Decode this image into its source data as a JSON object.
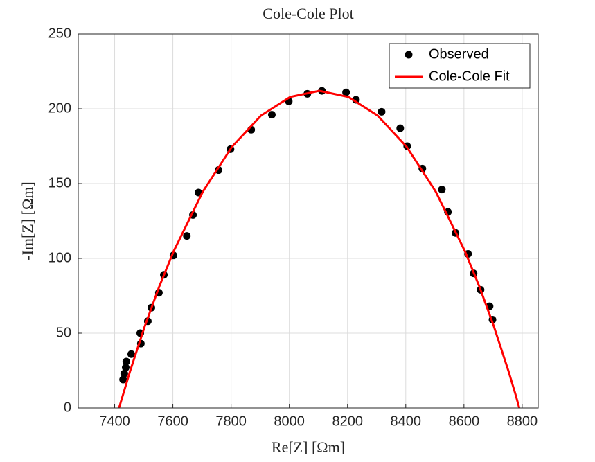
{
  "chart_data": {
    "type": "scatter",
    "title": "Cole-Cole Plot",
    "xlabel": "Re[Z] [Ωm]",
    "ylabel": "-Im[Z] [Ωm]",
    "xlim": [
      7275,
      8855
    ],
    "ylim": [
      0,
      250
    ],
    "xticks": [
      7400,
      7600,
      7800,
      8000,
      8200,
      8400,
      8600,
      8800
    ],
    "yticks": [
      0,
      50,
      100,
      150,
      200,
      250
    ],
    "grid": true,
    "legend": "northeast",
    "series": [
      {
        "name": "Observed",
        "type": "scatter",
        "color": "#000000",
        "x": [
          7429,
          7433,
          7438,
          7440,
          7457,
          7490,
          7488,
          7514,
          7526,
          7552,
          7569,
          7602,
          7648,
          7669,
          7688,
          7757,
          7798,
          7869,
          7940,
          7998,
          8062,
          8112,
          8195,
          8229,
          8317,
          8381,
          8405,
          8457,
          8524,
          8545,
          8571,
          8614,
          8633,
          8657,
          8688,
          8698
        ],
        "values": [
          19,
          23,
          27,
          31,
          36,
          43,
          50,
          58,
          67,
          77,
          89,
          102,
          115,
          129,
          144,
          159,
          173,
          186,
          196,
          205,
          210,
          212,
          211,
          206,
          198,
          187,
          175,
          160,
          146,
          131,
          117,
          103,
          90,
          79,
          68,
          59
        ]
      },
      {
        "name": "Cole-Cole Fit",
        "type": "line",
        "color": "#ff0000",
        "x": [
          7415,
          7428,
          7453,
          7503,
          7553,
          7603,
          7703,
          7803,
          7903,
          8003,
          8103,
          8203,
          8303,
          8403,
          8503,
          8603,
          8653,
          8703,
          8753,
          8778,
          8790
        ],
        "values": [
          0,
          8.4,
          24.6,
          54.4,
          81.1,
          104.9,
          144.6,
          174.6,
          195.5,
          207.9,
          212,
          207.9,
          195.5,
          174.6,
          144.6,
          104.9,
          81.1,
          54.4,
          24.6,
          8.4,
          0
        ]
      }
    ]
  }
}
